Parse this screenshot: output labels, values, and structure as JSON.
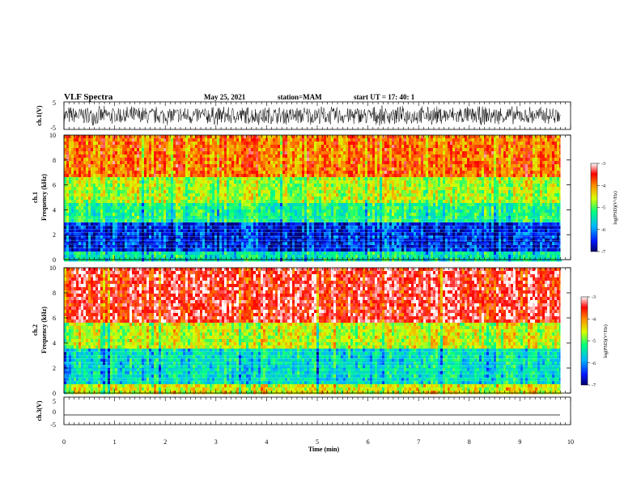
{
  "header": {
    "title": "VLF Spectra",
    "date": "May 25, 2021",
    "station": "station=MAM",
    "start": "start UT =   17: 40: 1"
  },
  "chart_data": [
    {
      "type": "line",
      "panel": "ch1-waveform",
      "ylabel": "ch.1(V)",
      "ylim": [
        -5,
        5
      ],
      "yticks": [
        "5",
        "-5"
      ],
      "description_values": {
        "typical_amplitude_V": [
          -3,
          3
        ],
        "noise": "dense broadband"
      }
    },
    {
      "type": "heatmap",
      "panel": "ch1-spectrogram",
      "ylabel": "ch.1\nFrequency (kHz)",
      "ylabel_line1": "ch.1",
      "ylabel_line2": "Frequency (kHz)",
      "ylim": [
        0,
        10
      ],
      "yticks": [
        "0",
        "2",
        "4",
        "6",
        "8",
        "10"
      ],
      "xlim": [
        0,
        10
      ],
      "colorbar": {
        "label": "log(PSD)(V²/Hz)",
        "range": [
          -7,
          -3
        ],
        "ticks": [
          "-3",
          "-4",
          "-5",
          "-6",
          "-7"
        ]
      },
      "bands": [
        {
          "f_kHz": [
            0,
            0.6
          ],
          "log_psd": -5.5
        },
        {
          "f_kHz": [
            0.6,
            3.0
          ],
          "log_psd": -6.5
        },
        {
          "f_kHz": [
            3.0,
            4.5
          ],
          "log_psd": -5.3
        },
        {
          "f_kHz": [
            4.5,
            6.5
          ],
          "log_psd": -4.7
        },
        {
          "f_kHz": [
            6.5,
            10
          ],
          "log_psd": -3.9
        }
      ]
    },
    {
      "type": "heatmap",
      "panel": "ch2-spectrogram",
      "ylabel_line1": "ch.2",
      "ylabel_line2": "Frequency (kHz)",
      "ylim": [
        0,
        10
      ],
      "yticks": [
        "0",
        "2",
        "4",
        "6",
        "8",
        "10"
      ],
      "xlim": [
        0,
        10
      ],
      "colorbar": {
        "label": "log(PSD)(V²/Hz)",
        "range": [
          -7,
          -3
        ],
        "ticks": [
          "-3",
          "-4",
          "-5",
          "-6",
          "-7"
        ]
      },
      "bands": [
        {
          "f_kHz": [
            0,
            0.6
          ],
          "log_psd": -4.5
        },
        {
          "f_kHz": [
            0.6,
            3.5
          ],
          "log_psd": -5.6
        },
        {
          "f_kHz": [
            3.5,
            5.5
          ],
          "log_psd": -4.6
        },
        {
          "f_kHz": [
            5.5,
            10
          ],
          "log_psd": -3.4
        }
      ]
    },
    {
      "type": "line",
      "panel": "ch3-waveform",
      "ylabel": "ch.3(V)",
      "ylim": [
        -5,
        5
      ],
      "yticks": [
        "5",
        "0",
        "-5"
      ],
      "constant_value_V": -1.5
    }
  ],
  "xaxis": {
    "label": "Time (min)",
    "ticks": [
      "0",
      "1",
      "2",
      "3",
      "4",
      "5",
      "6",
      "7",
      "8",
      "9",
      "10"
    ],
    "data_end_min": 9.8
  }
}
